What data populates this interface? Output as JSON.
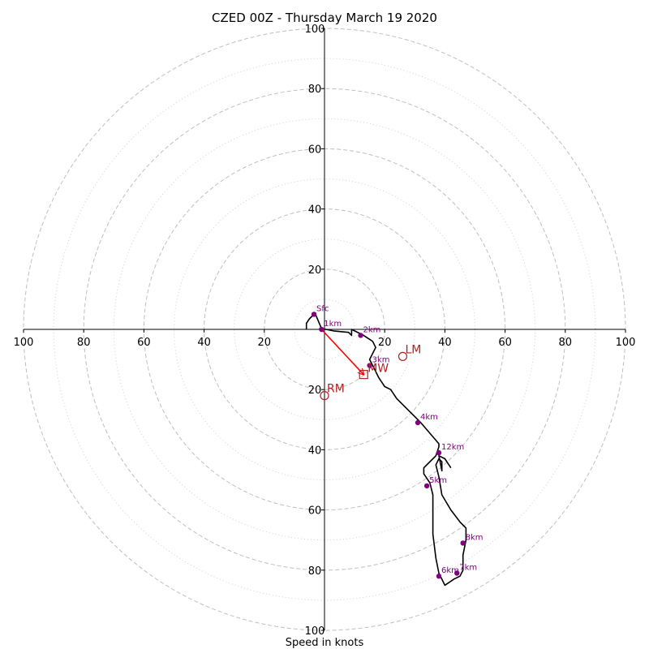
{
  "chart_data": {
    "type": "scatter",
    "title": "CZED 00Z - Thursday March 19 2020",
    "xlabel": "Speed in knots",
    "ylabel": "",
    "xlim": [
      -100,
      100
    ],
    "ylim": [
      -100,
      100
    ],
    "rings_major": [
      20,
      40,
      60,
      80,
      100
    ],
    "rings_minor": [
      10,
      30,
      50,
      70,
      90
    ],
    "x_ticks": [
      {
        "value": -100,
        "label": "100"
      },
      {
        "value": -80,
        "label": "80"
      },
      {
        "value": -60,
        "label": "60"
      },
      {
        "value": -40,
        "label": "40"
      },
      {
        "value": -20,
        "label": "20"
      },
      {
        "value": 20,
        "label": "20"
      },
      {
        "value": 40,
        "label": "40"
      },
      {
        "value": 60,
        "label": "60"
      },
      {
        "value": 80,
        "label": "80"
      },
      {
        "value": 100,
        "label": "100"
      }
    ],
    "y_ticks": [
      {
        "value": 100,
        "label": "100"
      },
      {
        "value": 80,
        "label": "80"
      },
      {
        "value": 60,
        "label": "60"
      },
      {
        "value": 40,
        "label": "40"
      },
      {
        "value": 20,
        "label": "20"
      },
      {
        "value": -20,
        "label": "20"
      },
      {
        "value": -40,
        "label": "40"
      },
      {
        "value": -60,
        "label": "60"
      },
      {
        "value": -80,
        "label": "80"
      },
      {
        "value": -100,
        "label": "100"
      }
    ],
    "hodograph": [
      [
        -6,
        0
      ],
      [
        -6,
        2
      ],
      [
        -5,
        3.5
      ],
      [
        -3.5,
        5
      ],
      [
        -3,
        5
      ],
      [
        -1,
        0.3
      ],
      [
        3,
        -0.5
      ],
      [
        8,
        -1
      ],
      [
        9,
        -2
      ],
      [
        9,
        0
      ],
      [
        13,
        -2
      ],
      [
        16,
        -4
      ],
      [
        17,
        -6
      ],
      [
        15,
        -10
      ],
      [
        16,
        -12
      ],
      [
        18,
        -16
      ],
      [
        20,
        -19
      ],
      [
        22,
        -20
      ],
      [
        24,
        -23
      ],
      [
        28,
        -27
      ],
      [
        32,
        -31
      ],
      [
        38,
        -38
      ],
      [
        38,
        -39
      ],
      [
        37,
        -42
      ],
      [
        36,
        -43
      ],
      [
        34,
        -45
      ],
      [
        33,
        -46
      ],
      [
        33,
        -48
      ],
      [
        35,
        -51
      ],
      [
        36,
        -55
      ],
      [
        36,
        -60
      ],
      [
        36,
        -68
      ],
      [
        37,
        -76
      ],
      [
        38,
        -81
      ],
      [
        40,
        -85
      ],
      [
        43,
        -83
      ],
      [
        45,
        -82
      ],
      [
        46,
        -80
      ],
      [
        46,
        -75
      ],
      [
        47,
        -70
      ],
      [
        47,
        -66
      ],
      [
        45,
        -64
      ],
      [
        42,
        -60
      ],
      [
        39,
        -55
      ],
      [
        38,
        -49
      ],
      [
        37,
        -45
      ],
      [
        38,
        -43
      ],
      [
        39,
        -44
      ],
      [
        39,
        -47
      ],
      [
        38,
        -42
      ],
      [
        40,
        -43
      ],
      [
        42,
        -46
      ]
    ],
    "height_markers": [
      {
        "label": "Sfc",
        "u": -3.5,
        "v": 5
      },
      {
        "label": "1km",
        "u": -1,
        "v": 0
      },
      {
        "label": "2km",
        "u": 12,
        "v": -2
      },
      {
        "label": "3km",
        "u": 15,
        "v": -12
      },
      {
        "label": "4km",
        "u": 31,
        "v": -31
      },
      {
        "label": "5km",
        "u": 34,
        "v": -52
      },
      {
        "label": "6km",
        "u": 38,
        "v": -82
      },
      {
        "label": "7km",
        "u": 44,
        "v": -81
      },
      {
        "label": "8km",
        "u": 46,
        "v": -71
      },
      {
        "label": "12km",
        "u": 38,
        "v": -41
      }
    ],
    "storm_motion": {
      "mean_wind": {
        "label": "MW",
        "u": 13,
        "v": -15
      },
      "right_mover": {
        "label": "RM",
        "u": 0,
        "v": -22
      },
      "left_mover": {
        "label": "LM",
        "u": 26,
        "v": -9
      }
    },
    "shear_vector": {
      "from": [
        -1,
        0
      ],
      "to": [
        13,
        -15
      ]
    },
    "colors": {
      "hodograph": "#000000",
      "markers": "#800080",
      "storm_motion": "#b22222",
      "shear_vector": "#ff0000",
      "grid": "#bfbfbf"
    }
  }
}
